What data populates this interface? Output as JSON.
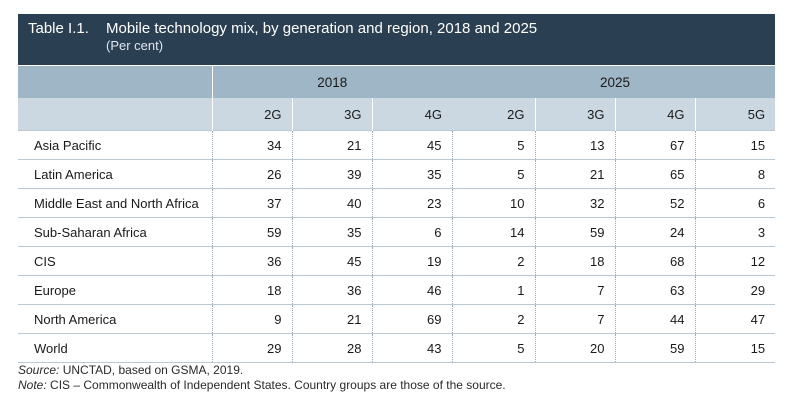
{
  "title": {
    "number": "Table I.1.",
    "text": "Mobile technology mix, by generation and region, 2018 and 2025",
    "subtitle": "(Per cent)"
  },
  "table": {
    "years": [
      "2018",
      "2025"
    ],
    "generations_2018": [
      "2G",
      "3G",
      "4G"
    ],
    "generations_2025": [
      "2G",
      "3G",
      "4G",
      "5G"
    ],
    "rows": [
      {
        "region": "Asia Pacific",
        "v": [
          "34",
          "21",
          "45",
          "5",
          "13",
          "67",
          "15"
        ]
      },
      {
        "region": "Latin America",
        "v": [
          "26",
          "39",
          "35",
          "5",
          "21",
          "65",
          "8"
        ]
      },
      {
        "region": "Middle East and North Africa",
        "v": [
          "37",
          "40",
          "23",
          "10",
          "32",
          "52",
          "6"
        ]
      },
      {
        "region": "Sub-Saharan Africa",
        "v": [
          "59",
          "35",
          "6",
          "14",
          "59",
          "24",
          "3"
        ]
      },
      {
        "region": "CIS",
        "v": [
          "36",
          "45",
          "19",
          "2",
          "18",
          "68",
          "12"
        ]
      },
      {
        "region": "Europe",
        "v": [
          "18",
          "36",
          "46",
          "1",
          "7",
          "63",
          "29"
        ]
      },
      {
        "region": "North America",
        "v": [
          "9",
          "21",
          "69",
          "2",
          "7",
          "44",
          "47"
        ]
      },
      {
        "region": "World",
        "v": [
          "29",
          "28",
          "43",
          "5",
          "20",
          "59",
          "15"
        ]
      }
    ]
  },
  "footer": {
    "source_label": "Source:",
    "source_text": " UNCTAD, based on GSMA, 2019.",
    "note_label": "Note:",
    "note_text": " CIS – Commonwealth of Independent States. Country groups are those of the source."
  }
}
